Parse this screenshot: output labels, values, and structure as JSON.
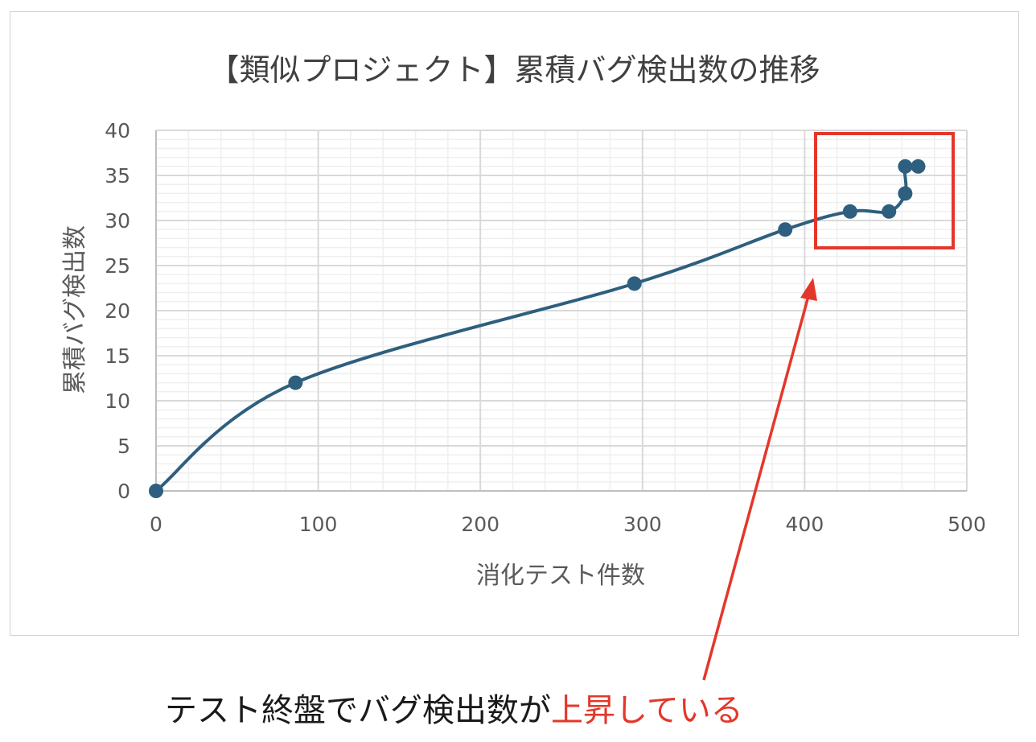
{
  "colors": {
    "series": "#2e5f7e",
    "highlight": "#e4372b",
    "grid_major": "#d9d9d9",
    "grid_minor": "#efefef"
  },
  "chart_data": {
    "type": "line",
    "title": "【類似プロジェクト】累積バグ検出数の推移",
    "xlabel": "消化テスト件数",
    "ylabel": "累積バグ検出数",
    "xlim": [
      0,
      500
    ],
    "ylim": [
      0,
      40
    ],
    "x_ticks": [
      "0",
      "100",
      "200",
      "300",
      "400",
      "500"
    ],
    "y_ticks": [
      "0",
      "5",
      "10",
      "15",
      "20",
      "25",
      "30",
      "35",
      "40"
    ],
    "grid": true,
    "smoothed": true,
    "series": [
      {
        "x": [
          0,
          86,
          295,
          388,
          428,
          452,
          462,
          462,
          470
        ],
        "y": [
          0,
          12,
          23,
          29,
          31,
          31,
          33,
          36,
          36
        ]
      }
    ]
  },
  "annotation": {
    "text_prefix": "テスト終盤でバグ検出数が",
    "text_highlight": "上昇している"
  }
}
